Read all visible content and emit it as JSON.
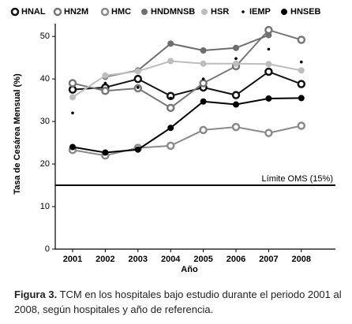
{
  "chart_data": {
    "type": "line",
    "categories": [
      "2001",
      "2002",
      "2003",
      "2004",
      "2005",
      "2006",
      "2007",
      "2008"
    ],
    "series": [
      {
        "name": "HNAL",
        "color": "#111111",
        "marker": "ring",
        "values": [
          37.5,
          38,
          40,
          36,
          38,
          36.2,
          41.7,
          38.8
        ]
      },
      {
        "name": "HN2M",
        "color": "#777777",
        "marker": "ring",
        "values": [
          39,
          37.2,
          37.8,
          33.2,
          39,
          43,
          51.5,
          49.2
        ]
      },
      {
        "name": "HMC",
        "color": "#8a8a8a",
        "marker": "ring",
        "values": [
          23.3,
          22,
          23.8,
          24.3,
          28,
          28.7,
          27.3,
          29
        ]
      },
      {
        "name": "HNDMNSB",
        "color": "#6e6e6e",
        "marker": "dot",
        "values": [
          null,
          40.5,
          42,
          48.3,
          46.7,
          47.3,
          50.3,
          null
        ]
      },
      {
        "name": "HSR",
        "color": "#bdbdbd",
        "marker": "dot",
        "values": [
          35.7,
          40.8,
          41.8,
          44.2,
          43.6,
          43.6,
          43.5,
          42
        ]
      },
      {
        "name": "IEMP",
        "color": "#000000",
        "marker": "small",
        "line": false,
        "values": [
          32,
          39,
          38,
          35.5,
          40,
          44.8,
          47,
          44
        ]
      },
      {
        "name": "HNSEB",
        "color": "#000000",
        "marker": "dot",
        "values": [
          24,
          22.7,
          23.4,
          28.5,
          34.7,
          34,
          35.4,
          35.5
        ]
      }
    ],
    "ylim": [
      0,
      53
    ],
    "yticks": [
      0,
      10,
      20,
      30,
      40,
      50
    ],
    "ylabel": "Tasa de Cesárea Mensual (%)",
    "xlabel": "Año",
    "hline": {
      "value": 15,
      "label": "Límite OMS (15%)"
    }
  },
  "caption": {
    "label": "Figura 3.",
    "text": "TCM en los hospitales bajo estudio durante el periodo 2001 al 2008, según hospitales y año de referencia."
  }
}
